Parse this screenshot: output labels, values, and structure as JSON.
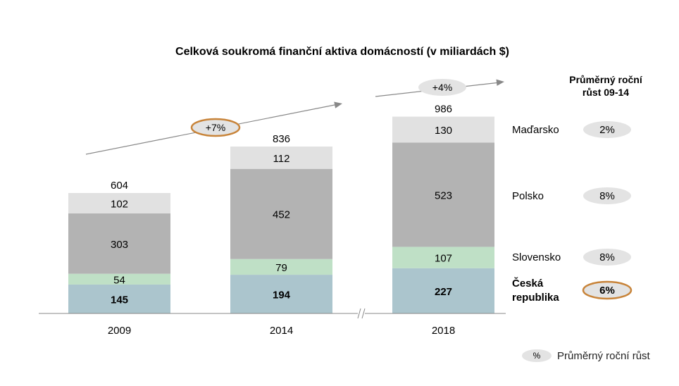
{
  "chart_data": {
    "type": "bar",
    "stacked": true,
    "title": "Celková soukromá finanční aktiva domácností (v miliardách $)",
    "categories": [
      "2009",
      "2014",
      "2018"
    ],
    "series": [
      {
        "name": "Česká republika",
        "values": [
          145,
          194,
          227
        ],
        "color": "#abc5cd",
        "growth": "6%",
        "bold": true
      },
      {
        "name": "Slovensko",
        "values": [
          54,
          79,
          107
        ],
        "color": "#bfe0c6",
        "growth": "8%"
      },
      {
        "name": "Polsko",
        "values": [
          303,
          452,
          523
        ],
        "color": "#b3b3b3",
        "growth": "8%"
      },
      {
        "name": "Maďarsko",
        "values": [
          102,
          112,
          130
        ],
        "color": "#e1e1e1",
        "growth": "2%"
      }
    ],
    "totals": [
      604,
      836,
      986
    ],
    "growth_annotations": [
      {
        "label": "+7%",
        "from": "2009",
        "to": "2014",
        "highlighted": true
      },
      {
        "label": "+4%",
        "from": "2014",
        "to": "2018",
        "highlighted": false
      }
    ],
    "growth_column_header": "Průměrný roční růst 09-14",
    "legend": {
      "symbol": "%",
      "label": "Průměrný roční růst"
    },
    "ylim": [
      0,
      1000
    ],
    "grid": false
  }
}
